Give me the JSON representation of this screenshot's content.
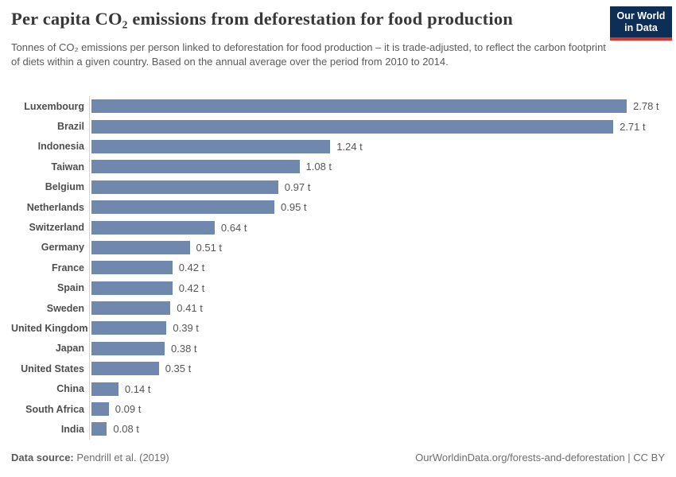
{
  "header": {
    "title": "Per capita CO₂ emissions from deforestation for food production",
    "subtitle": "Tonnes of CO₂ emissions per person linked to deforestation for food production – it is trade-adjusted, to reflect the carbon footprint of diets within a given country. Based on the annual average over the period from 2010 to 2014.",
    "logo": {
      "line1": "Our World",
      "line2": "in Data",
      "bg_color": "#0d2e56",
      "accent_color": "#dc352a"
    }
  },
  "chart_data": {
    "type": "bar",
    "orientation": "horizontal",
    "title": "Per capita CO₂ emissions from deforestation for food production",
    "unit": "t",
    "xlim": [
      0,
      2.78
    ],
    "grid": false,
    "legend": "none",
    "bar_color": "#7188ae",
    "axis_line_color": "#d4d4d4",
    "categories": [
      "Luxembourg",
      "Brazil",
      "Indonesia",
      "Taiwan",
      "Belgium",
      "Netherlands",
      "Switzerland",
      "Germany",
      "France",
      "Spain",
      "Sweden",
      "United Kingdom",
      "Japan",
      "United States",
      "China",
      "South Africa",
      "India"
    ],
    "values": [
      2.78,
      2.71,
      1.24,
      1.08,
      0.97,
      0.95,
      0.64,
      0.51,
      0.42,
      0.42,
      0.41,
      0.39,
      0.38,
      0.35,
      0.14,
      0.09,
      0.08
    ],
    "value_labels": [
      "2.78 t",
      "2.71 t",
      "1.24 t",
      "1.08 t",
      "0.97 t",
      "0.95 t",
      "0.64 t",
      "0.51 t",
      "0.42 t",
      "0.42 t",
      "0.41 t",
      "0.39 t",
      "0.38 t",
      "0.35 t",
      "0.14 t",
      "0.09 t",
      "0.08 t"
    ]
  },
  "footer": {
    "source_label": "Data source:",
    "source_value": " Pendrill et al. (2019)",
    "attribution": "OurWorldinData.org/forests-and-deforestation | CC BY"
  }
}
